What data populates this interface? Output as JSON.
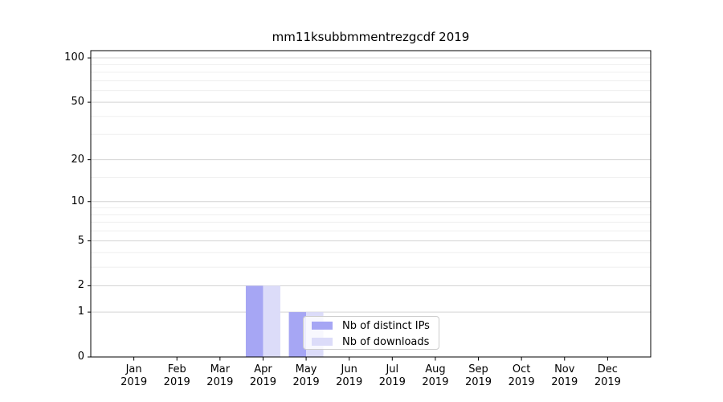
{
  "chart_data": {
    "type": "bar",
    "title": "mm11ksubbmmentrezgcdf 2019",
    "categories": [
      "Jan",
      "Feb",
      "Mar",
      "Apr",
      "May",
      "Jun",
      "Jul",
      "Aug",
      "Sep",
      "Oct",
      "Nov",
      "Dec"
    ],
    "category_year_line": "2019",
    "series": [
      {
        "name": "Nb of distinct IPs",
        "color": "#a6a6f4",
        "values": [
          0,
          0,
          0,
          2,
          1,
          0,
          0,
          0,
          0,
          0,
          0,
          0
        ]
      },
      {
        "name": "Nb of downloads",
        "color": "#dcdcf9",
        "values": [
          0,
          0,
          0,
          2,
          1,
          0,
          0,
          0,
          0,
          0,
          0,
          0
        ]
      }
    ],
    "yscale": "log1p",
    "yticks": [
      0,
      1,
      2,
      5,
      10,
      20,
      50,
      100
    ],
    "minor_yticks": [
      3,
      4,
      6,
      7,
      8,
      9,
      15,
      30,
      40,
      60,
      70,
      80,
      90
    ],
    "ylim": [
      0,
      112
    ],
    "xlabel": "",
    "ylabel": "",
    "grid": true,
    "legend": {
      "items": [
        "Nb of distinct IPs",
        "Nb of downloads"
      ],
      "position": "lower-center-inside"
    },
    "style": {
      "major_grid_color": "#d4d4d4",
      "minor_grid_color": "#efefef",
      "spine_color": "#000000",
      "tick_color": "#000000"
    }
  }
}
